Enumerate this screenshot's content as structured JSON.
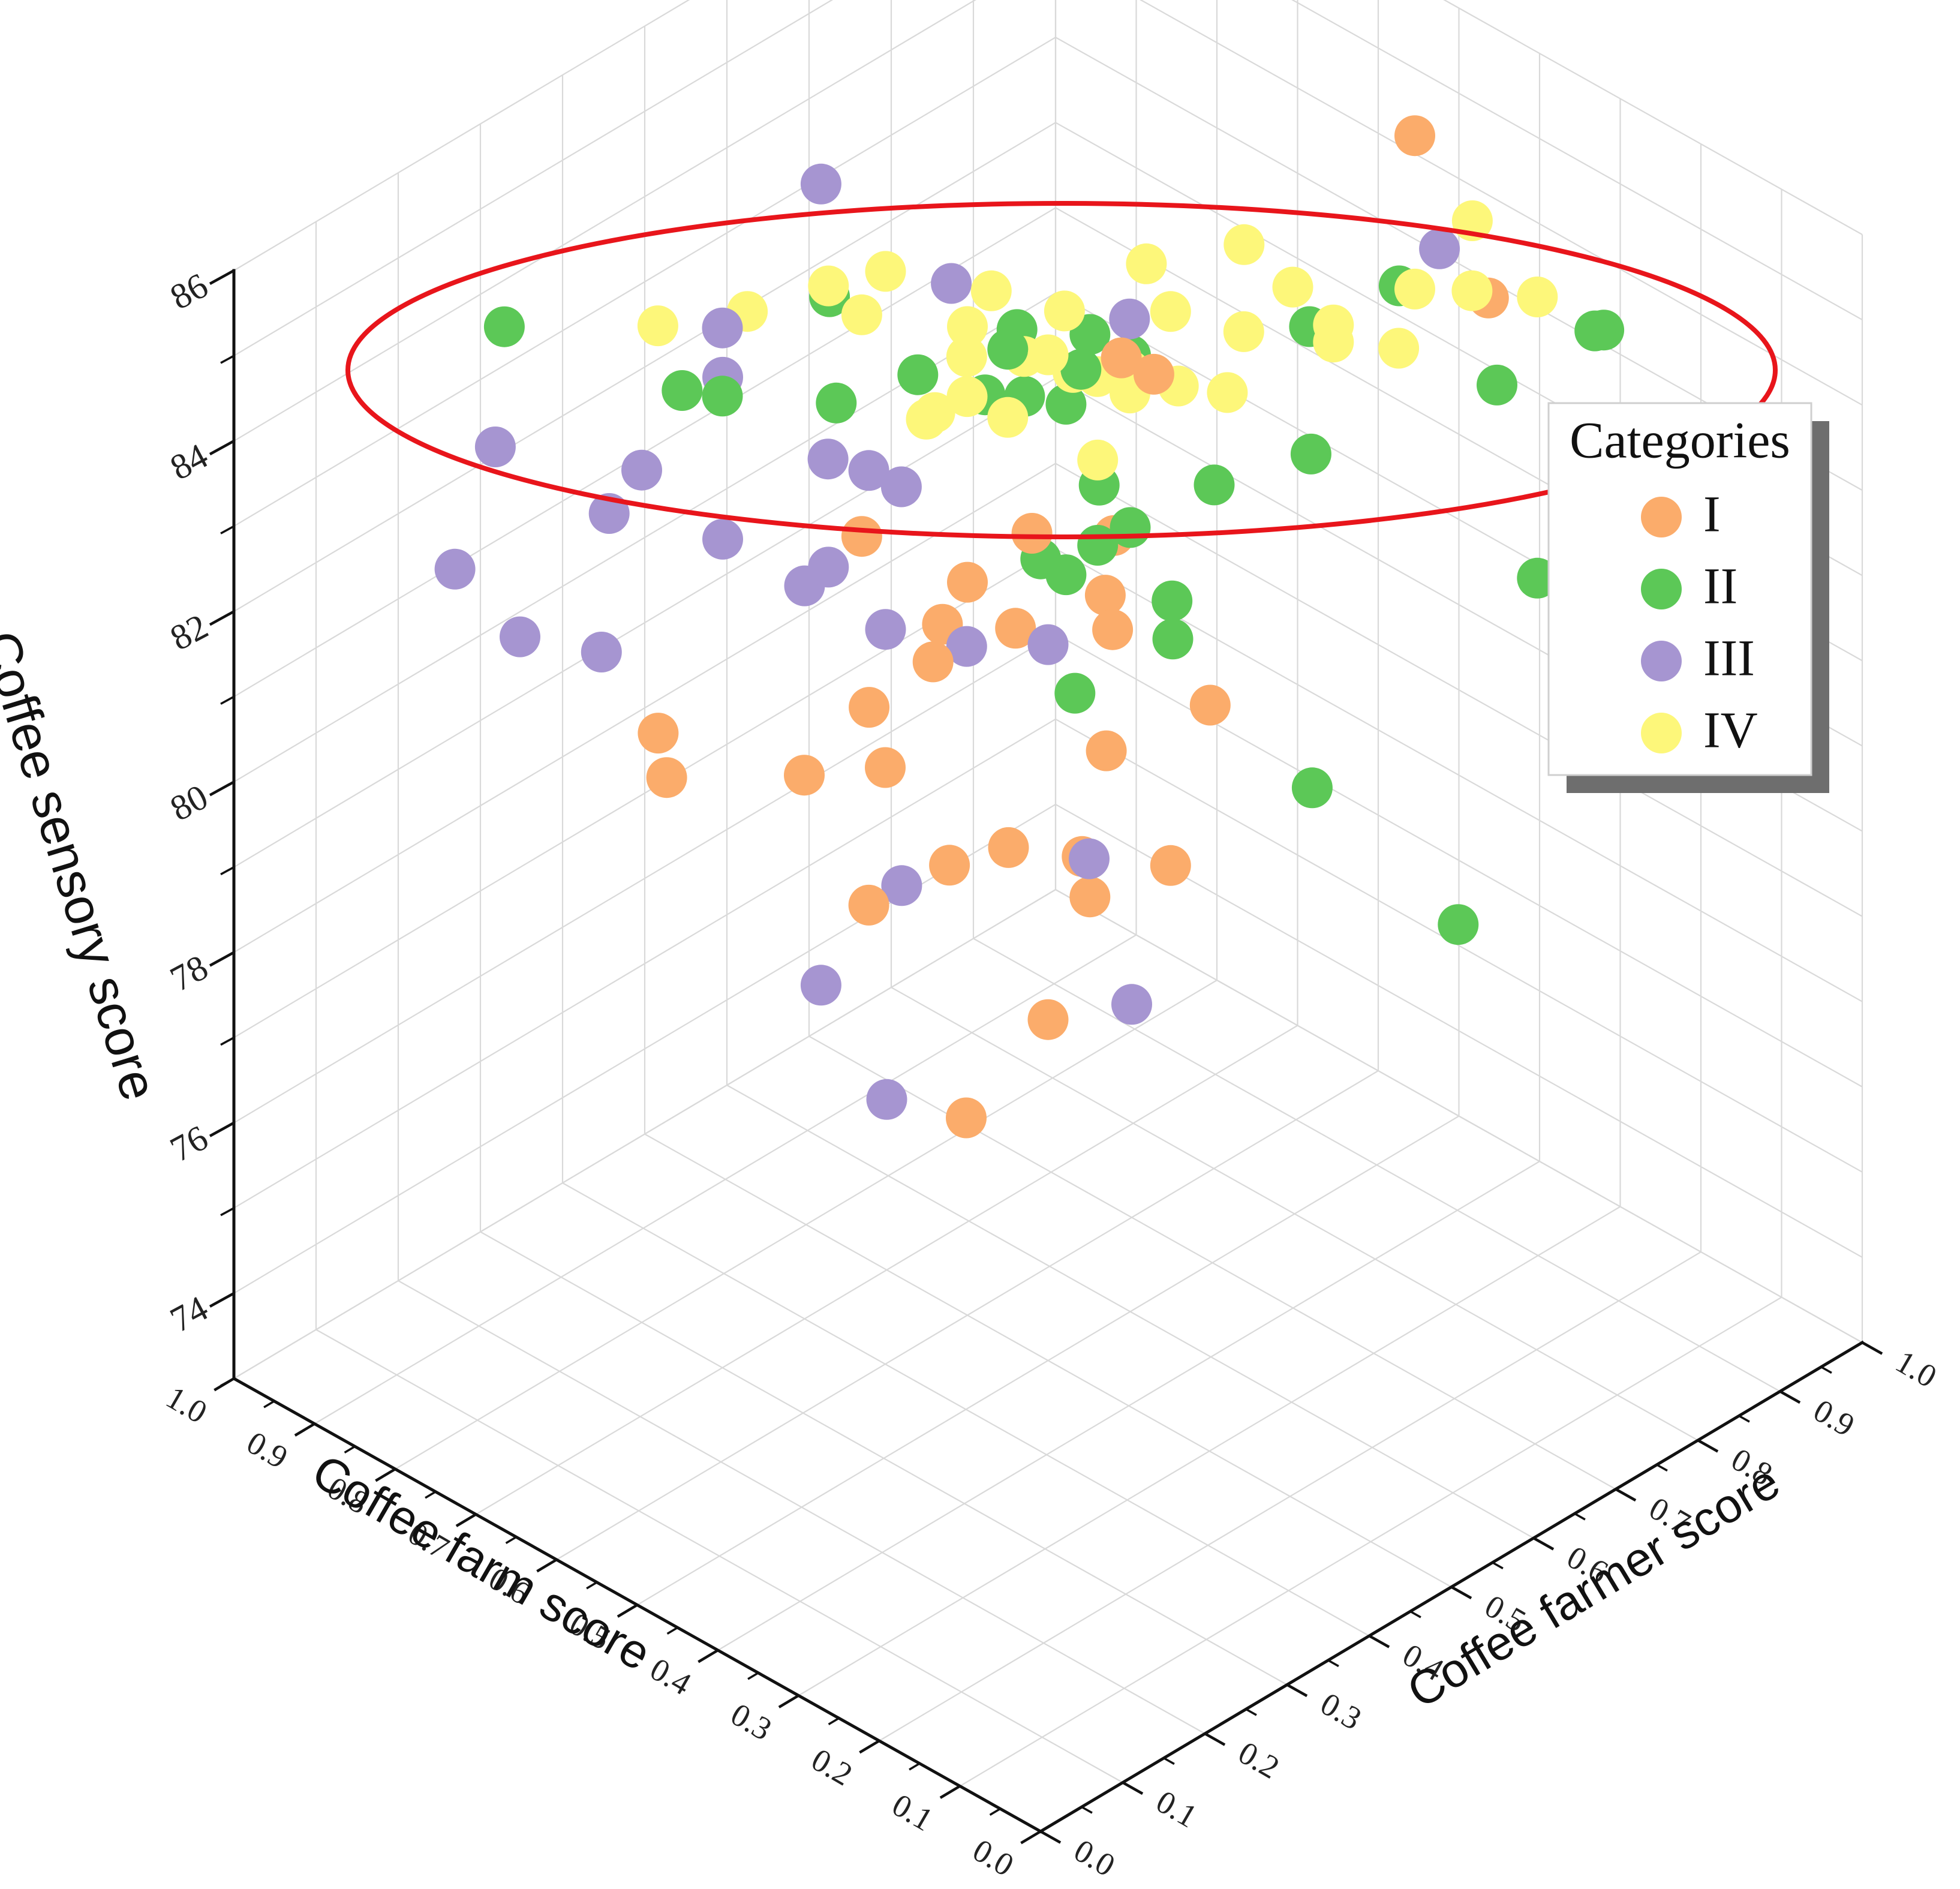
{
  "chart_data": {
    "type": "scatter",
    "projection": "3d",
    "axes": {
      "x": {
        "label": "Coffee farm score",
        "range": [
          0,
          1
        ],
        "ticks": [
          "0.0",
          "0.1",
          "0.2",
          "0.3",
          "0.4",
          "0.5",
          "0.6",
          "0.7",
          "0.8",
          "0.9",
          "1.0"
        ]
      },
      "y": {
        "label": "Coffee farmer score",
        "range": [
          0,
          1
        ],
        "ticks": [
          "0.0",
          "0.1",
          "0.2",
          "0.3",
          "0.4",
          "0.5",
          "0.6",
          "0.7",
          "0.8",
          "0.9",
          "1.0"
        ]
      },
      "z": {
        "label": "Coffee sensory score",
        "range": [
          73,
          86
        ],
        "ticks": [
          "74",
          "76",
          "78",
          "80",
          "82",
          "84",
          "86"
        ]
      }
    },
    "grid": true,
    "legend": {
      "title": "Categories",
      "position": "right"
    },
    "annotation": {
      "type": "ellipse",
      "color": "#e8151b",
      "note": "highlights high sensory scores around 84-85"
    },
    "series": [
      {
        "name": "I",
        "color": "#fbac6b",
        "points": [
          [
            0.5,
            0.36,
            82.0
          ],
          [
            0.52,
            0.5,
            82.6
          ],
          [
            0.48,
            0.55,
            81.8
          ],
          [
            0.42,
            0.5,
            82.0
          ],
          [
            0.35,
            0.55,
            81.2
          ],
          [
            0.58,
            0.45,
            81.5
          ],
          [
            0.6,
            0.5,
            81.6
          ],
          [
            0.68,
            0.45,
            82.0
          ],
          [
            0.62,
            0.4,
            80.6
          ],
          [
            0.55,
            0.62,
            79.2
          ],
          [
            0.6,
            0.4,
            80.0
          ],
          [
            0.68,
            0.38,
            79.6
          ],
          [
            0.8,
            0.32,
            79.8
          ],
          [
            0.82,
            0.35,
            79.0
          ],
          [
            0.5,
            0.38,
            79.5
          ],
          [
            0.6,
            0.38,
            78.5
          ],
          [
            0.45,
            0.6,
            78.5
          ],
          [
            0.6,
            0.55,
            78.2
          ],
          [
            0.5,
            0.5,
            77.0
          ],
          [
            0.55,
            0.6,
            77.6
          ],
          [
            0.52,
            0.42,
            76.2
          ],
          [
            0.58,
            0.62,
            77.8
          ],
          [
            0.3,
            0.75,
            87.0
          ],
          [
            0.28,
            0.82,
            84.8
          ],
          [
            0.45,
            0.54,
            84.8
          ],
          [
            0.43,
            0.56,
            84.6
          ],
          [
            0.52,
            0.48,
            81.6
          ],
          [
            0.52,
            0.6,
            82.0
          ]
        ]
      },
      {
        "name": "II",
        "color": "#5cc857",
        "points": [
          [
            0.95,
            0.28,
            84.0
          ],
          [
            0.75,
            0.3,
            84.2
          ],
          [
            0.7,
            0.3,
            84.4
          ],
          [
            0.62,
            0.36,
            84.4
          ],
          [
            0.58,
            0.42,
            84.6
          ],
          [
            0.55,
            0.5,
            84.6
          ],
          [
            0.5,
            0.54,
            84.4
          ],
          [
            0.55,
            0.6,
            84.2
          ],
          [
            0.52,
            0.62,
            84.0
          ],
          [
            0.6,
            0.62,
            83.0
          ],
          [
            0.68,
            0.6,
            82.8
          ],
          [
            0.4,
            0.72,
            84.4
          ],
          [
            0.35,
            0.78,
            84.8
          ],
          [
            0.3,
            0.85,
            83.5
          ],
          [
            0.25,
            0.92,
            84.0
          ],
          [
            0.5,
            0.6,
            82.2
          ],
          [
            0.52,
            0.58,
            82.0
          ],
          [
            0.56,
            0.55,
            81.8
          ],
          [
            0.6,
            0.62,
            81.0
          ],
          [
            0.62,
            0.68,
            81.6
          ],
          [
            0.55,
            0.7,
            80.5
          ],
          [
            0.6,
            0.75,
            79.5
          ],
          [
            0.62,
            0.82,
            80.8
          ],
          [
            0.5,
            0.82,
            81.8
          ],
          [
            0.25,
            0.85,
            81.5
          ],
          [
            0.65,
            0.68,
            79.0
          ],
          [
            0.58,
            0.9,
            77.0
          ],
          [
            0.45,
            0.95,
            75.8
          ],
          [
            0.58,
            0.55,
            83.6
          ],
          [
            0.72,
            0.45,
            84.6
          ],
          [
            0.3,
            0.98,
            83.4
          ],
          [
            0.62,
            0.58,
            84.0
          ]
        ]
      },
      {
        "name": "III",
        "color": "#a695d1",
        "points": [
          [
            0.7,
            0.42,
            86.2
          ],
          [
            0.7,
            0.3,
            85.2
          ],
          [
            0.72,
            0.32,
            84.4
          ],
          [
            0.62,
            0.35,
            83.8
          ],
          [
            0.6,
            0.38,
            83.6
          ],
          [
            0.58,
            0.4,
            83.4
          ],
          [
            0.8,
            0.3,
            83.0
          ],
          [
            0.9,
            0.22,
            83.2
          ],
          [
            0.82,
            0.28,
            82.5
          ],
          [
            0.72,
            0.32,
            82.5
          ],
          [
            0.65,
            0.38,
            82.2
          ],
          [
            0.7,
            0.4,
            81.6
          ],
          [
            0.62,
            0.42,
            81.4
          ],
          [
            0.55,
            0.45,
            81.4
          ],
          [
            0.5,
            0.5,
            81.4
          ],
          [
            0.95,
            0.22,
            81.5
          ],
          [
            0.9,
            0.25,
            80.8
          ],
          [
            0.85,
            0.3,
            80.6
          ],
          [
            0.6,
            0.42,
            78.5
          ],
          [
            0.5,
            0.55,
            78.6
          ],
          [
            0.7,
            0.42,
            76.8
          ],
          [
            0.6,
            0.7,
            75.5
          ],
          [
            0.7,
            0.5,
            75.0
          ],
          [
            0.45,
            0.55,
            85.2
          ],
          [
            0.3,
            0.78,
            85.5
          ],
          [
            0.62,
            0.5,
            85.0
          ]
        ]
      },
      {
        "name": "IV",
        "color": "#fdf77a",
        "points": [
          [
            0.65,
            0.38,
            85.5
          ],
          [
            0.62,
            0.42,
            85.6
          ],
          [
            0.55,
            0.48,
            85.4
          ],
          [
            0.5,
            0.52,
            85.2
          ],
          [
            0.45,
            0.6,
            85.0
          ],
          [
            0.4,
            0.64,
            84.8
          ],
          [
            0.35,
            0.7,
            84.8
          ],
          [
            0.3,
            0.75,
            85.2
          ],
          [
            0.28,
            0.8,
            85.0
          ],
          [
            0.25,
            0.85,
            84.8
          ],
          [
            0.6,
            0.5,
            84.6
          ],
          [
            0.55,
            0.52,
            84.4
          ],
          [
            0.52,
            0.55,
            84.2
          ],
          [
            0.5,
            0.56,
            84.2
          ],
          [
            0.48,
            0.58,
            84.0
          ],
          [
            0.55,
            0.45,
            84.8
          ],
          [
            0.5,
            0.5,
            84.8
          ],
          [
            0.45,
            0.55,
            84.6
          ],
          [
            0.42,
            0.58,
            84.4
          ],
          [
            0.4,
            0.62,
            84.2
          ],
          [
            0.58,
            0.48,
            84.0
          ],
          [
            0.55,
            0.5,
            83.8
          ],
          [
            0.6,
            0.45,
            83.8
          ],
          [
            0.62,
            0.48,
            83.6
          ],
          [
            0.52,
            0.58,
            83.0
          ],
          [
            0.35,
            0.7,
            84.6
          ],
          [
            0.32,
            0.75,
            84.4
          ],
          [
            0.38,
            0.68,
            85.2
          ],
          [
            0.48,
            0.6,
            85.4
          ],
          [
            0.42,
            0.66,
            85.6
          ],
          [
            0.3,
            0.82,
            85.6
          ],
          [
            0.72,
            0.35,
            85.0
          ],
          [
            0.78,
            0.3,
            84.8
          ],
          [
            0.68,
            0.45,
            84.6
          ]
        ]
      }
    ]
  }
}
